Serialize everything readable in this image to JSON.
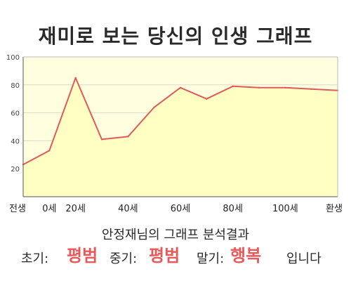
{
  "title": "재미로 보는 당신의 인생 그래프",
  "chart_data": {
    "type": "area",
    "x_labels": [
      "전생",
      "0세",
      "20세",
      "40세",
      "60세",
      "80세",
      "100세",
      "환생"
    ],
    "points": [
      {
        "x": "전생",
        "y": 23
      },
      {
        "x": "0세",
        "y": 33
      },
      {
        "x": "20세",
        "y": 85
      },
      {
        "x": "30세",
        "y": 41
      },
      {
        "x": "40세",
        "y": 43
      },
      {
        "x": "50세",
        "y": 64
      },
      {
        "x": "60세",
        "y": 78
      },
      {
        "x": "70세",
        "y": 70
      },
      {
        "x": "80세",
        "y": 79
      },
      {
        "x": "90세",
        "y": 78
      },
      {
        "x": "100세",
        "y": 78
      },
      {
        "x": "110세",
        "y": 77
      },
      {
        "x": "환생",
        "y": 76
      }
    ],
    "y_ticks": [
      20,
      40,
      60,
      80,
      100
    ],
    "ylim": [
      0,
      100
    ],
    "grid": true,
    "line_color": "#e05a5a",
    "fill_color": "#ffffc4",
    "plot_bg_color": "#ffffe0",
    "grid_color": "#d9d9c9"
  },
  "result": {
    "caption": "안정재님의 그래프 분석결과",
    "early_label": "초기:",
    "early_value": "평범",
    "middle_label": "중기:",
    "middle_value": "평범",
    "late_label": "말기:",
    "late_value": "행복",
    "suffix": "입니다",
    "highlight_color": "#e85a5a"
  }
}
